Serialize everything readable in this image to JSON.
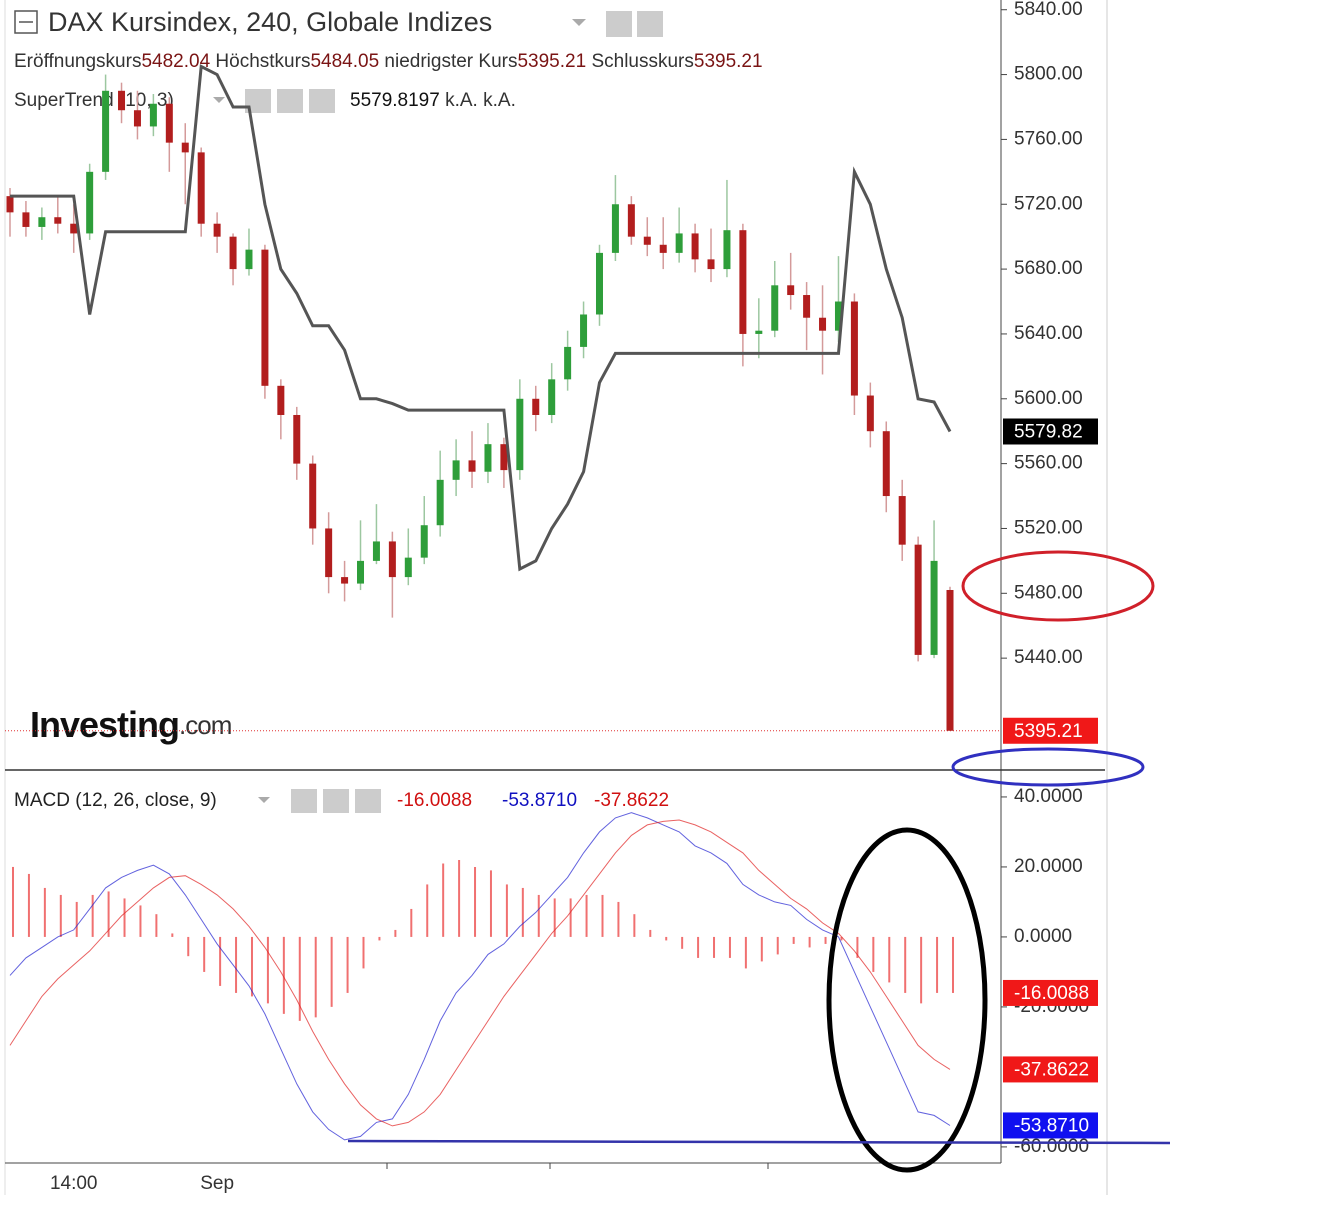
{
  "header": {
    "title": "DAX Kursindex, 240, Globale Indizes",
    "ohlc_labels": [
      "Eröffnungskurs",
      "Höchstkurs",
      "niedrigster Kurs",
      "Schlusskurs"
    ],
    "supertrend_extra": [
      "k.A.",
      "k.A."
    ],
    "logo": "Investing",
    "logo_suffix": ".com"
  },
  "chart_data": [
    {
      "type": "candlestick",
      "up_color": "#2e9e3a",
      "down_color": "#b21e1e",
      "open": [
        5725,
        5715,
        5706,
        5712,
        5708,
        5702,
        5740,
        5790,
        5778,
        5768,
        5782,
        5758,
        5752,
        5708,
        5700,
        5680,
        5692,
        5608,
        5590,
        5560,
        5520,
        5490,
        5486,
        5500,
        5512,
        5490,
        5502,
        5522,
        5550,
        5562,
        5555,
        5572,
        5556,
        5600,
        5590,
        5612,
        5632,
        5652,
        5690,
        5720,
        5700,
        5695,
        5690,
        5702,
        5686,
        5680,
        5704,
        5640,
        5642,
        5670,
        5664,
        5650,
        5642,
        5660,
        5602,
        5580,
        5540,
        5510,
        5442,
        5482.04
      ],
      "high": [
        5730,
        5722,
        5718,
        5725,
        5720,
        5745,
        5800,
        5795,
        5790,
        5788,
        5786,
        5770,
        5755,
        5715,
        5702,
        5705,
        5695,
        5612,
        5595,
        5565,
        5530,
        5500,
        5525,
        5535,
        5518,
        5520,
        5540,
        5568,
        5575,
        5580,
        5585,
        5576,
        5612,
        5608,
        5622,
        5642,
        5660,
        5695,
        5738,
        5725,
        5712,
        5712,
        5718,
        5708,
        5705,
        5735,
        5708,
        5662,
        5685,
        5690,
        5672,
        5670,
        5688,
        5665,
        5610,
        5586,
        5550,
        5515,
        5525,
        5484.05
      ],
      "low": [
        5700,
        5700,
        5698,
        5702,
        5690,
        5698,
        5735,
        5770,
        5760,
        5762,
        5740,
        5720,
        5700,
        5690,
        5670,
        5676,
        5600,
        5575,
        5550,
        5510,
        5480,
        5475,
        5482,
        5498,
        5465,
        5485,
        5498,
        5515,
        5540,
        5545,
        5548,
        5545,
        5550,
        5580,
        5585,
        5605,
        5625,
        5645,
        5685,
        5695,
        5688,
        5680,
        5684,
        5678,
        5672,
        5675,
        5620,
        5625,
        5638,
        5655,
        5630,
        5615,
        5635,
        5590,
        5570,
        5530,
        5500,
        5438,
        5440,
        5395.21
      ],
      "close": [
        5715,
        5706,
        5712,
        5708,
        5702,
        5740,
        5790,
        5778,
        5768,
        5782,
        5758,
        5752,
        5708,
        5700,
        5680,
        5692,
        5608,
        5590,
        5560,
        5520,
        5490,
        5486,
        5500,
        5512,
        5490,
        5502,
        5522,
        5550,
        5562,
        5555,
        5572,
        5556,
        5600,
        5590,
        5612,
        5632,
        5652,
        5690,
        5720,
        5700,
        5695,
        5690,
        5702,
        5686,
        5680,
        5704,
        5640,
        5642,
        5670,
        5664,
        5650,
        5642,
        5660,
        5602,
        5580,
        5540,
        5510,
        5442,
        5500,
        5395.21
      ],
      "series": [
        {
          "name": "SuperTrend (10, 3)",
          "color": "#555555",
          "values": [
            5725,
            5725,
            5725,
            5725,
            5725,
            5652,
            5703,
            5703,
            5703,
            5703,
            5703,
            5703,
            5805,
            5800,
            5780,
            5780,
            5720,
            5680,
            5665,
            5645,
            5645,
            5630,
            5600,
            5600,
            5597,
            5593,
            5593,
            5593,
            5593,
            5593,
            5593,
            5593,
            5495,
            5500,
            5520,
            5535,
            5555,
            5610,
            5628,
            5628,
            5628,
            5628,
            5628,
            5628,
            5628,
            5628,
            5628,
            5628,
            5628,
            5628,
            5628,
            5628,
            5628,
            5740,
            5720,
            5680,
            5650,
            5600,
            5598,
            5579.8197
          ],
          "last_value_label": "5579.82"
        }
      ],
      "ylim": [
        5371,
        5846
      ],
      "yticks": [
        {
          "value": 5440,
          "label": "5440.00"
        },
        {
          "value": 5480,
          "label": "5480.00"
        },
        {
          "value": 5520,
          "label": "5520.00"
        },
        {
          "value": 5560,
          "label": "5560.00"
        },
        {
          "value": 5600,
          "label": "5600.00"
        },
        {
          "value": 5640,
          "label": "5640.00"
        },
        {
          "value": 5680,
          "label": "5680.00"
        },
        {
          "value": 5720,
          "label": "5720.00"
        },
        {
          "value": 5760,
          "label": "5760.00"
        },
        {
          "value": 5800,
          "label": "5800.00"
        },
        {
          "value": 5840,
          "label": "5840.00"
        }
      ]
    },
    {
      "type": "combo",
      "title": "MACD (12, 26, close, 9)",
      "categories": [
        null,
        null,
        null,
        null,
        "14:00",
        null,
        null,
        null,
        null,
        null,
        null,
        null,
        null,
        "Sep",
        null,
        null,
        null,
        null,
        null,
        null,
        null,
        null,
        null,
        null,
        null,
        null,
        null,
        null,
        null,
        null,
        null,
        null,
        null,
        null,
        null,
        null,
        null,
        null,
        null,
        null,
        null,
        null,
        null,
        null,
        null,
        null,
        null,
        null,
        null,
        null,
        null,
        null,
        null,
        null,
        null,
        null,
        null,
        null,
        null,
        null
      ],
      "series": [
        {
          "kind": "bar",
          "color": "#f07070",
          "values": [
            20,
            18,
            14,
            12,
            10,
            12,
            13,
            11,
            9,
            6.5,
            1,
            -5.5,
            -10,
            -14,
            -16,
            -17,
            -19,
            -22,
            -24,
            -23,
            -20,
            -16,
            -9,
            -1,
            2,
            8,
            15,
            21,
            22,
            20,
            19,
            15,
            14,
            12,
            11,
            11,
            12,
            12,
            10,
            6.5,
            2,
            -1,
            -3.4,
            -6,
            -6,
            -6,
            -9,
            -7,
            -5,
            -2,
            -3,
            -2,
            -1,
            -6,
            -10,
            -13,
            -16,
            -19,
            -16,
            -16.0088
          ]
        },
        {
          "kind": "line",
          "color": "#2020d0",
          "values": [
            -11,
            -6,
            -3,
            0,
            2,
            8,
            14,
            17,
            19,
            20.5,
            18,
            12,
            5,
            -2,
            -8,
            -14,
            -22,
            -32,
            -42,
            -50,
            -55,
            -58,
            -57,
            -53,
            -52,
            -45,
            -35,
            -24,
            -16,
            -11,
            -5,
            -2,
            3,
            7,
            12,
            17,
            24,
            30,
            34,
            35.5,
            34,
            32,
            30,
            26,
            24,
            21,
            15,
            12,
            10,
            9,
            5,
            2,
            0,
            -10,
            -20,
            -30,
            -40,
            -50,
            -51,
            -53.871
          ],
          "last_value_label": "-53.8710"
        },
        {
          "kind": "line",
          "color": "#e02020",
          "values": [
            -31,
            -24,
            -17,
            -12,
            -8,
            -4,
            1,
            6,
            10,
            14,
            17,
            17.5,
            15,
            12,
            8,
            3,
            -3,
            -10,
            -18,
            -27,
            -35,
            -42,
            -48,
            -52,
            -54,
            -53,
            -50,
            -45,
            -38,
            -31,
            -24,
            -17,
            -11,
            -5,
            1,
            6,
            12,
            18,
            24,
            29,
            32,
            33,
            33.4,
            32,
            30,
            27,
            24,
            19,
            15,
            11,
            8,
            4,
            1,
            -4,
            -10,
            -17,
            -24,
            -31,
            -35,
            -37.8622
          ]
        }
      ],
      "ylim": [
        -64.6,
        47.7
      ],
      "yticks": [
        {
          "value": -60,
          "label": "-60.0000"
        },
        {
          "value": -20,
          "label": "-20.0000"
        },
        {
          "value": 0,
          "label": "0.0000"
        },
        {
          "value": 20,
          "label": "20.0000"
        },
        {
          "value": 40,
          "label": "40.0000"
        }
      ]
    }
  ]
}
